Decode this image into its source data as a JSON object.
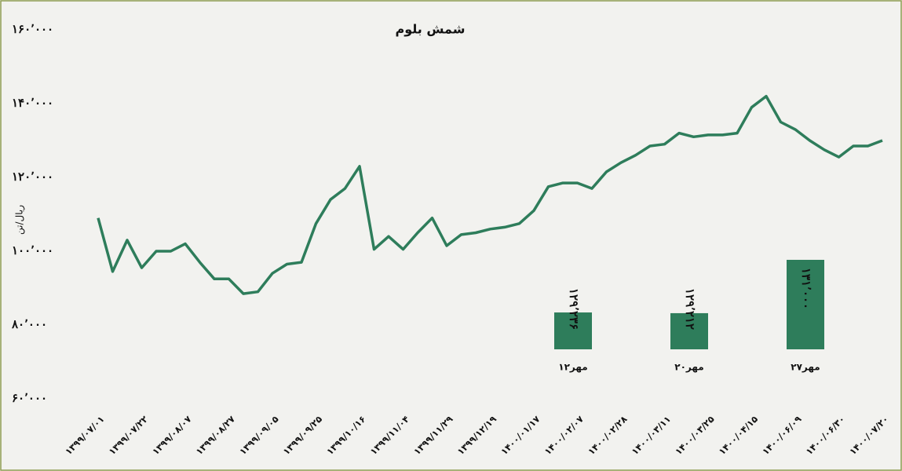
{
  "chart_data": [
    {
      "type": "line",
      "title": "شمش بلوم",
      "y_label": "ریال/تن",
      "color": "#2e7d5b",
      "ylim": [
        60000,
        160000
      ],
      "yticks": [
        {
          "value": 60000,
          "label": "۶۰٬۰۰۰"
        },
        {
          "value": 80000,
          "label": "۸۰٬۰۰۰"
        },
        {
          "value": 100000,
          "label": "۱۰۰٬۰۰۰"
        },
        {
          "value": 120000,
          "label": "۱۲۰٬۰۰۰"
        },
        {
          "value": 140000,
          "label": "۱۴۰٬۰۰۰"
        },
        {
          "value": 160000,
          "label": "۱۶۰٬۰۰۰"
        }
      ],
      "categories": [
        "۱۳۹۹/۰۷/۰۱",
        null,
        null,
        "۱۳۹۹/۰۷/۲۲",
        null,
        null,
        "۱۳۹۹/۰۸/۰۷",
        null,
        null,
        "۱۳۹۹/۰۸/۲۷",
        null,
        null,
        "۱۳۹۹/۰۹/۰۵",
        null,
        null,
        "۱۳۹۹/۰۹/۲۵",
        null,
        null,
        "۱۳۹۹/۱۰/۱۶",
        null,
        null,
        "۱۳۹۹/۱۱/۰۴",
        null,
        null,
        "۱۳۹۹/۱۱/۲۹",
        null,
        null,
        "۱۳۹۹/۱۲/۱۹",
        null,
        null,
        "۱۴۰۰/۰۱/۱۷",
        null,
        null,
        "۱۴۰۰/۰۲/۰۷",
        null,
        null,
        "۱۴۰۰/۰۲/۲۸",
        null,
        null,
        "۱۴۰۰/۰۳/۱۱",
        null,
        null,
        "۱۴۰۰/۰۳/۲۵",
        null,
        null,
        "۱۴۰۰/۰۴/۱۵",
        null,
        null,
        "۱۴۰۰/۰۶/۰۹",
        null,
        null,
        "۱۴۰۰/۰۶/۳۰",
        null,
        null,
        "۱۴۰۰/۰۷/۲۰"
      ],
      "values": [
        109000,
        94500,
        103000,
        95500,
        100000,
        100000,
        102000,
        97000,
        92500,
        92500,
        88500,
        89000,
        94000,
        96500,
        97000,
        107500,
        114000,
        117000,
        123000,
        100500,
        104000,
        100500,
        105000,
        109000,
        101500,
        104500,
        105000,
        106000,
        106500,
        107500,
        111000,
        117500,
        118500,
        118500,
        117000,
        121500,
        124000,
        126000,
        128500,
        129000,
        132000,
        131000,
        131500,
        131500,
        132000,
        139000,
        142000,
        135000,
        133000,
        130000,
        127500,
        125500,
        128500,
        128500,
        130000
      ]
    },
    {
      "type": "bar",
      "color": "#2e7d5b",
      "ylim": [
        128000,
        131000
      ],
      "categories": [
        "۱۲مهر",
        "۲۰مهر",
        "۲۷مهر"
      ],
      "values": [
        129236,
        129212,
        131000
      ],
      "value_labels": [
        "۱۲۹٬۲۳۶",
        "۱۲۹٬۲۱۲",
        "۱۳۱٬۰۰۰"
      ]
    }
  ]
}
